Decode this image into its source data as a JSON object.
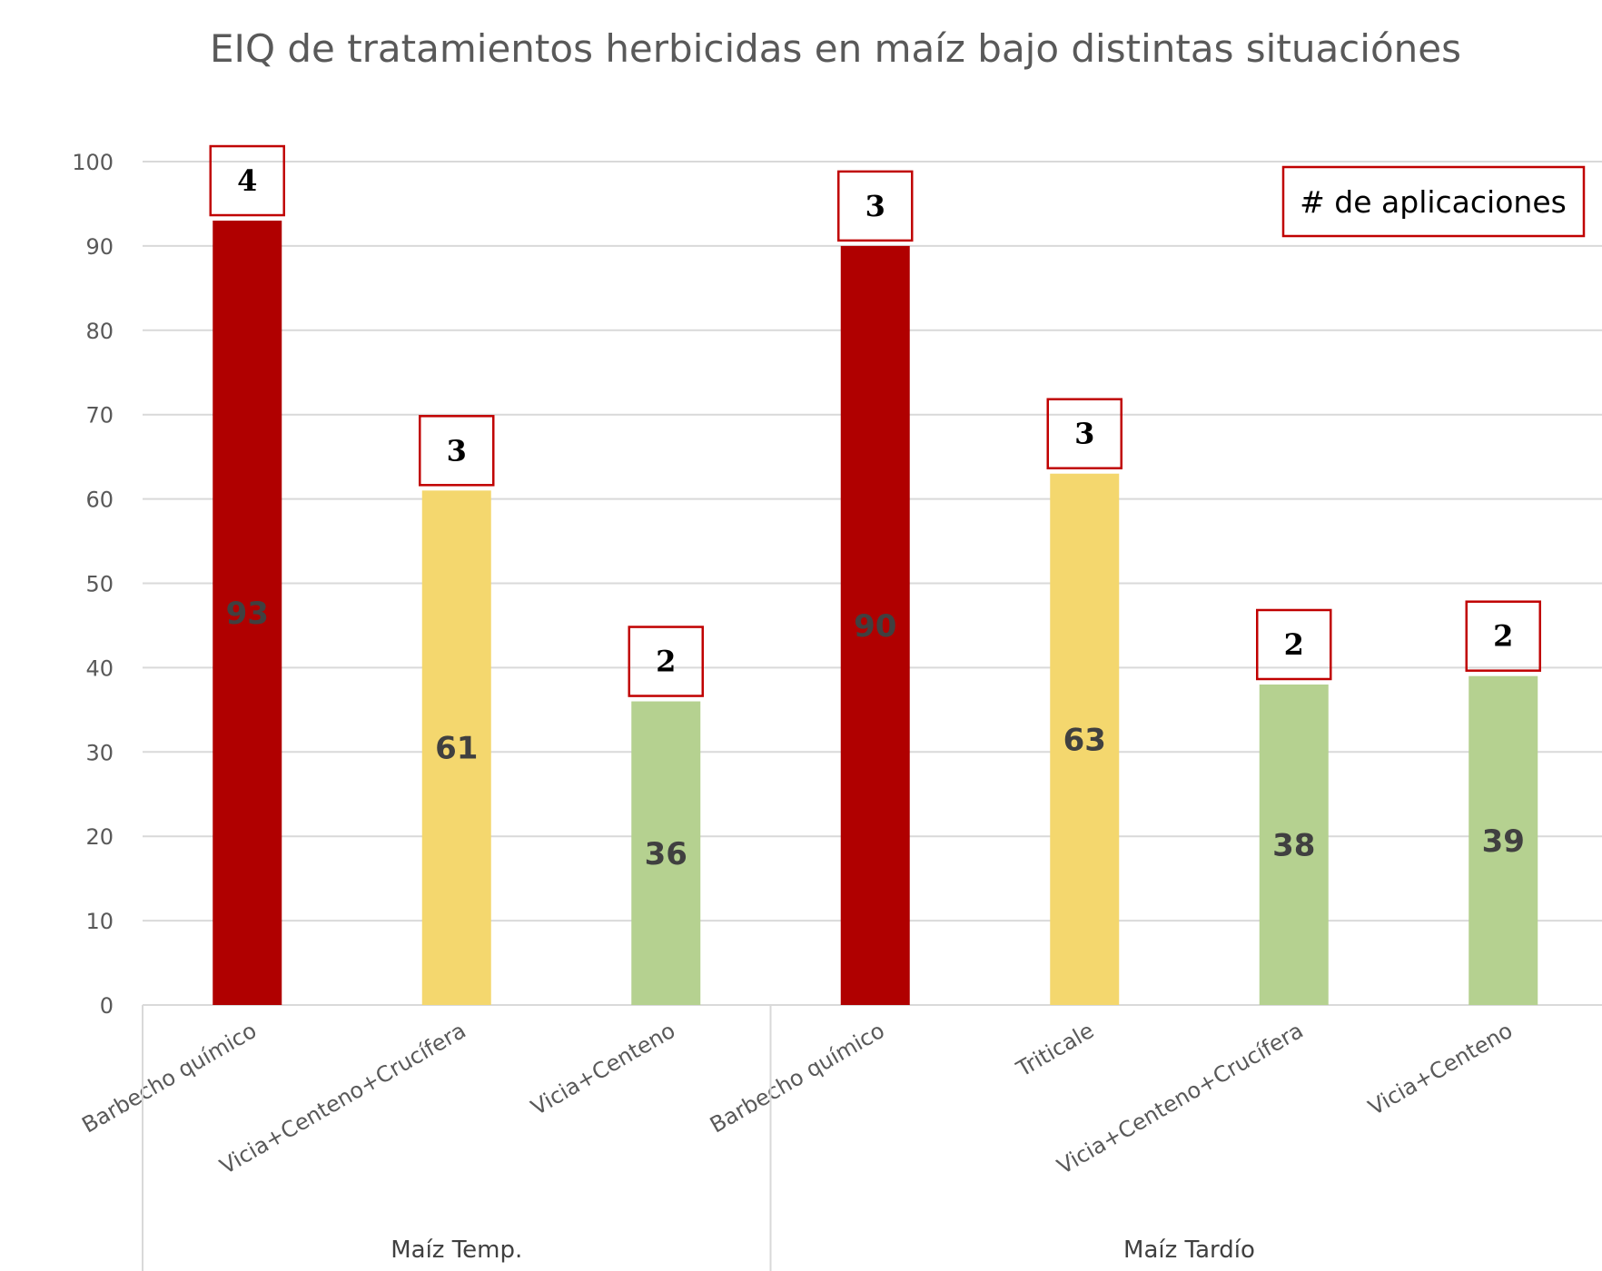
{
  "chart_data": {
    "type": "bar",
    "title": "EIQ de tratamientos herbicidas en maíz bajo distintas situaciónes",
    "ylim": [
      0,
      100
    ],
    "yticks": [
      0,
      10,
      20,
      30,
      40,
      50,
      60,
      70,
      80,
      90,
      100
    ],
    "grid": true,
    "groups": [
      {
        "name": "Maíz Temp.",
        "size": 3
      },
      {
        "name": "Maíz Tardío",
        "size": 4
      }
    ],
    "categories": [
      "Barbecho químico",
      "Vicia+Centeno+Crucífera",
      "Vicia+Centeno",
      "Barbecho químico",
      "Triticale",
      "Vicia+Centeno+Crucífera",
      "Vicia+Centeno"
    ],
    "values": [
      93,
      61,
      36,
      90,
      63,
      38,
      39
    ],
    "applications": [
      4,
      3,
      2,
      3,
      3,
      2,
      2
    ],
    "bar_colors": [
      "#b00000",
      "#f4d76e",
      "#b5d190",
      "#b00000",
      "#f4d76e",
      "#b5d190",
      "#b5d190"
    ],
    "legend_box": "# de aplicaciones",
    "legend_position": "top-right"
  }
}
